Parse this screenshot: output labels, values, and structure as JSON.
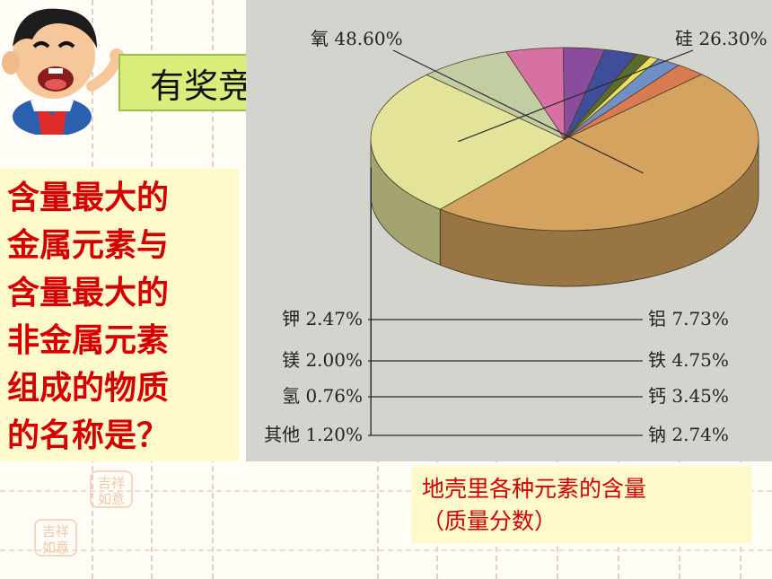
{
  "badge": {
    "text": "有奖竞答"
  },
  "question": {
    "lines": [
      "含量最大的",
      "金属元素与",
      "含量最大的",
      "非金属元素",
      "组成的物质",
      "的名称是？"
    ]
  },
  "caption": {
    "line1": "地壳里各种元素的含量",
    "line2": "（质量分数）"
  },
  "chart_data": {
    "type": "pie",
    "style": "3d",
    "title": "地壳里各种元素的含量（质量分数）",
    "unit": "%",
    "slices": [
      {
        "label": "氧",
        "value": 48.6,
        "text": "氧 48.60%",
        "color": "#d4a35f"
      },
      {
        "label": "硅",
        "value": 26.3,
        "text": "硅 26.30%",
        "color": "#e3e49a"
      },
      {
        "label": "铝",
        "value": 7.73,
        "text": "铝 7.73%",
        "color": "#c3cda4"
      },
      {
        "label": "铁",
        "value": 4.75,
        "text": "铁 4.75%",
        "color": "#d771a4"
      },
      {
        "label": "钙",
        "value": 3.45,
        "text": "钙 3.45%",
        "color": "#8a4d9e"
      },
      {
        "label": "钠",
        "value": 2.74,
        "text": "钠 2.74%",
        "color": "#3f4e9a"
      },
      {
        "label": "其他",
        "value": 1.2,
        "text": "其他 1.20%",
        "color": "#5a6b2c"
      },
      {
        "label": "氢",
        "value": 0.76,
        "text": "氢 0.76%",
        "color": "#e8e15a"
      },
      {
        "label": "镁",
        "value": 2.0,
        "text": "镁 2.00%",
        "color": "#6f8fc5"
      },
      {
        "label": "钾",
        "value": 2.47,
        "text": "钾 2.47%",
        "color": "#d87b55"
      }
    ],
    "legend": "none"
  },
  "colors": {
    "question_text": "#d60000",
    "badge_bg": "#d9ed7a",
    "panel_bg": "#fffacc",
    "chart_bg": "#d4d4cf"
  },
  "icons": [
    "cartoon-boy-mascot",
    "seal-stamp"
  ]
}
